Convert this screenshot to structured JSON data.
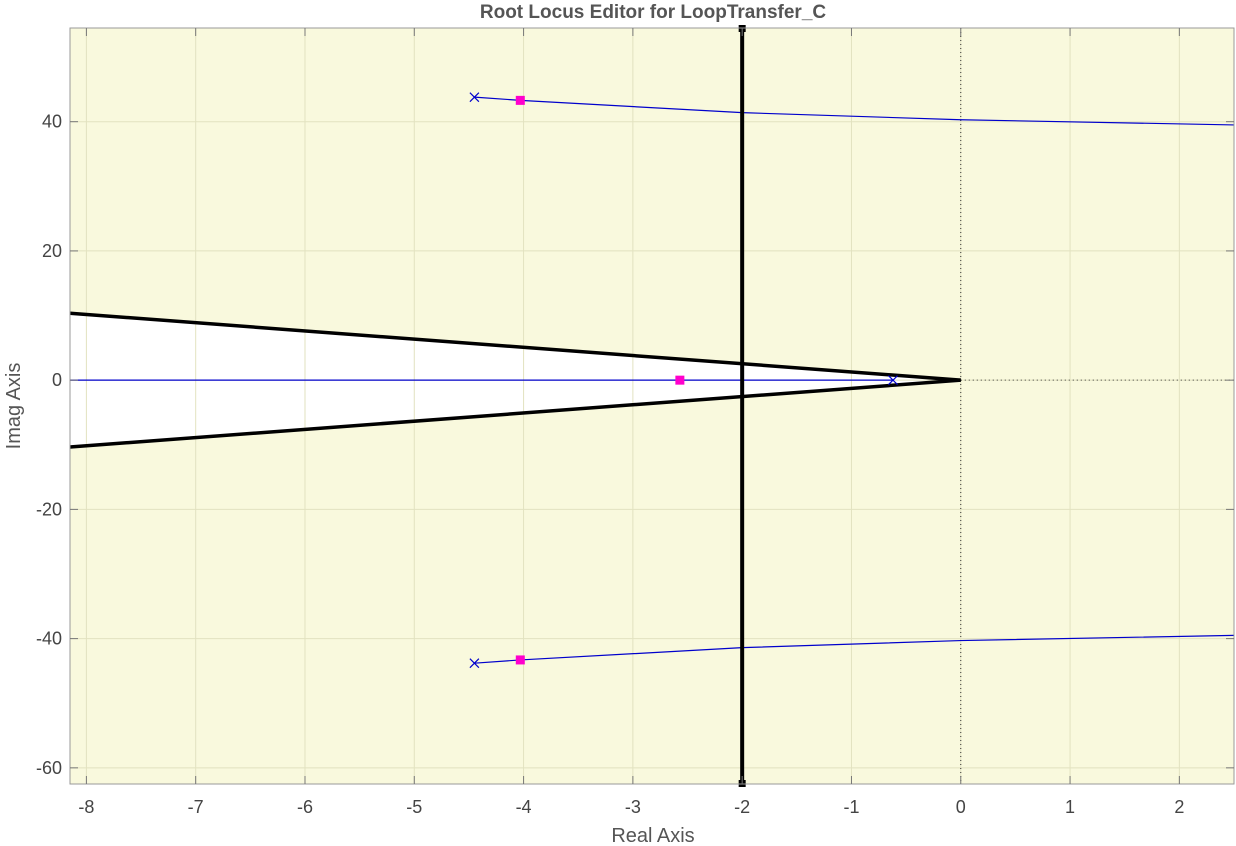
{
  "chart_data": {
    "type": "root-locus",
    "title": "Root Locus Editor for LoopTransfer_C",
    "xlabel": "Real Axis",
    "ylabel": "Imag Axis",
    "xlim": [
      -8.15,
      2.5
    ],
    "ylim": [
      -62.5,
      54.5
    ],
    "xticks": [
      -8,
      -7,
      -6,
      -5,
      -4,
      -3,
      -2,
      -1,
      0,
      1,
      2
    ],
    "yticks": [
      40,
      20,
      0,
      -20,
      -40,
      -60
    ],
    "background_color": "#f9f9dd",
    "unshaded_region_color": "#ffffff",
    "locus_color": "#0000cc",
    "pole_marker_color": "#0000cc",
    "closed_loop_marker_color": "#ff00cc",
    "constraint_color": "#000000",
    "open_loop_poles": [
      {
        "re": -4.45,
        "im": 43.8
      },
      {
        "re": -4.45,
        "im": -43.8
      },
      {
        "re": -0.62,
        "im": 0
      }
    ],
    "closed_loop_poles": [
      {
        "re": -4.03,
        "im": 43.3
      },
      {
        "re": -4.03,
        "im": -43.3
      },
      {
        "re": -2.57,
        "im": 0
      }
    ],
    "loci": [
      {
        "branch": "upper",
        "points": [
          [
            -4.45,
            43.8
          ],
          [
            -4.03,
            43.3
          ],
          [
            -2.0,
            41.4
          ],
          [
            0.0,
            40.3
          ],
          [
            2.5,
            39.5
          ]
        ]
      },
      {
        "branch": "lower",
        "points": [
          [
            -4.45,
            -43.8
          ],
          [
            -4.03,
            -43.3
          ],
          [
            -2.0,
            -41.4
          ],
          [
            0.0,
            -40.3
          ],
          [
            2.5,
            -39.5
          ]
        ]
      },
      {
        "branch": "real",
        "points": [
          [
            -8.15,
            0
          ],
          [
            -0.62,
            0
          ]
        ]
      }
    ],
    "constraints": [
      {
        "kind": "settling-time",
        "real_part": -2
      },
      {
        "kind": "damping-ratio",
        "imag_per_real": 1.27
      }
    ]
  }
}
